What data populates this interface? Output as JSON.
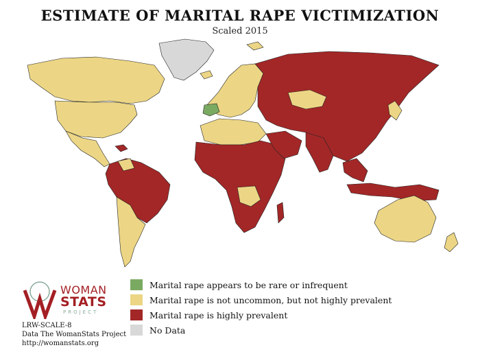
{
  "header": {
    "title": "ESTIMATE OF MARITAL RAPE VICTIMIZATION",
    "subtitle": "Scaled 2015"
  },
  "colors": {
    "rare": "#7aaa62",
    "not_uncommon": "#ecd685",
    "highly_prevalent": "#a32727",
    "no_data": "#d8d8d8",
    "border": "#222222"
  },
  "legend": {
    "items": [
      {
        "label": "Marital rape appears to be rare or infrequent",
        "color": "#7aaa62"
      },
      {
        "label": "Marital rape is not uncommon, but not highly prevalent",
        "color": "#ecd685"
      },
      {
        "label": "Marital rape is highly prevalent",
        "color": "#a32727"
      },
      {
        "label": "No Data",
        "color": "#d8d8d8"
      }
    ]
  },
  "logo": {
    "word1": "WOMAN",
    "word2": "STATS",
    "word3": "PROJECT"
  },
  "credits": {
    "scale_code": "LRW-SCALE-8",
    "source": "Data The WomanStats Project",
    "url": "http://womanstats.org"
  }
}
